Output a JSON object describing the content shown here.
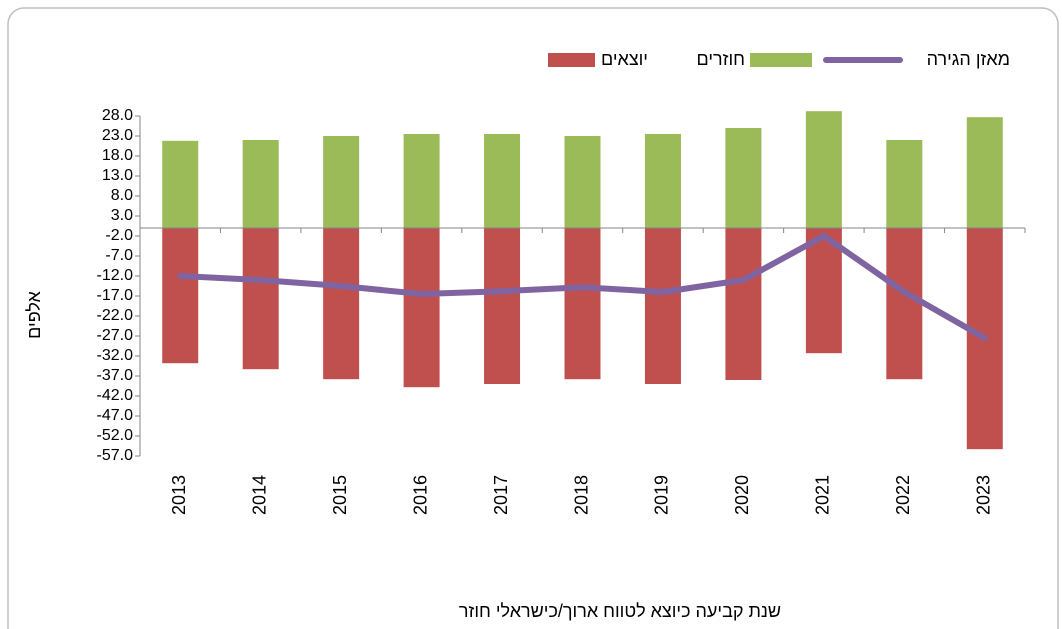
{
  "chart_data": {
    "type": "bar",
    "y_label": "אלפים",
    "x_label": "שנת קביעה כיוצא לטווח ארוך/כישראלי חוזר",
    "categories": [
      "2013",
      "2014",
      "2015",
      "2016",
      "2017",
      "2018",
      "2019",
      "2020",
      "2021",
      "2022",
      "2023"
    ],
    "series": [
      {
        "name": "יוצאים",
        "type": "bar",
        "color": "#c0504d",
        "values": [
          -33.8,
          -35.3,
          -37.8,
          -39.8,
          -39,
          -37.8,
          -39,
          -38,
          -31.3,
          -37.8,
          -55.3
        ]
      },
      {
        "name": "חוזרים",
        "type": "bar",
        "color": "#9bbb59",
        "values": [
          21.8,
          22,
          23,
          23.5,
          23.5,
          23,
          23.5,
          25,
          29.2,
          22,
          27.7
        ]
      },
      {
        "name": "מאזן הגירה",
        "type": "line",
        "color": "#8064a2",
        "values": [
          -12,
          -13,
          -14.5,
          -16.5,
          -15.8,
          -14.8,
          -16,
          -13,
          -2,
          -16,
          -27.5
        ]
      }
    ],
    "ylim": [
      -57,
      28
    ],
    "yticks": [
      {
        "value": 28,
        "label": "28.0"
      },
      {
        "value": 23,
        "label": "23.0"
      },
      {
        "value": 18,
        "label": "18.0"
      },
      {
        "value": 13,
        "label": "13.0"
      },
      {
        "value": 8,
        "label": "8.0"
      },
      {
        "value": 3,
        "label": "3.0"
      },
      {
        "value": -2,
        "label": "-2.0"
      },
      {
        "value": -7,
        "label": "-7.0"
      },
      {
        "value": -12,
        "label": "-12.0"
      },
      {
        "value": -17,
        "label": "-17.0"
      },
      {
        "value": -22,
        "label": "-22.0"
      },
      {
        "value": -27,
        "label": "-27.0"
      },
      {
        "value": -32,
        "label": "-32.0"
      },
      {
        "value": -37,
        "label": "-37.0"
      },
      {
        "value": -42,
        "label": "-42.0"
      },
      {
        "value": -47,
        "label": "-47.0"
      },
      {
        "value": -52,
        "label": "-52.0"
      },
      {
        "value": -57,
        "label": "-57.0"
      }
    ],
    "grid": false,
    "legend": "top"
  }
}
